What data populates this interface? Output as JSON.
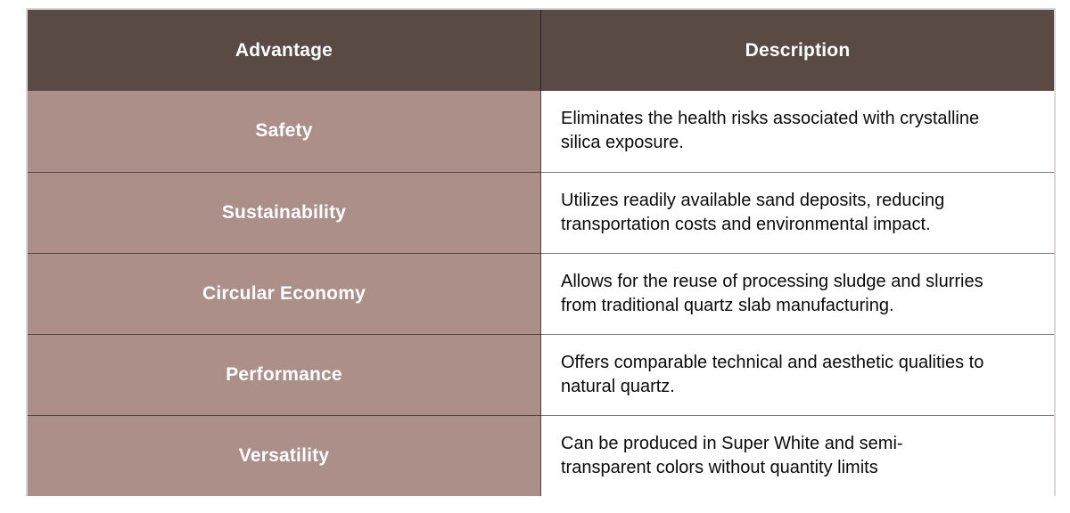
{
  "table": {
    "columns": [
      {
        "label": "Advantage"
      },
      {
        "label": "Description"
      }
    ],
    "rows": [
      {
        "advantage": "Safety",
        "description": "Eliminates the health risks associated with crystalline silica exposure."
      },
      {
        "advantage": "Sustainability",
        "description": "Utilizes readily available sand deposits, reducing transportation costs and environmental impact."
      },
      {
        "advantage": "Circular Economy",
        "description": "Allows for the reuse of processing sludge and slurries from traditional quartz slab manufacturing."
      },
      {
        "advantage": "Performance",
        "description": "Offers comparable technical and aesthetic qualities to natural quartz."
      },
      {
        "advantage": "Versatility",
        "description": "Can be produced in Super White and semi-transparent colors without quantity limits"
      }
    ],
    "colors": {
      "header_bg": "#594a44",
      "header_text": "#ffffff",
      "advantage_bg": "#ab8f88",
      "advantage_text": "#ffffff",
      "description_bg": "#ffffff",
      "description_text": "#0b0b0b",
      "inner_border": "rgba(0,0,0,0.52)",
      "outer_border": "#d9d5d3"
    }
  }
}
